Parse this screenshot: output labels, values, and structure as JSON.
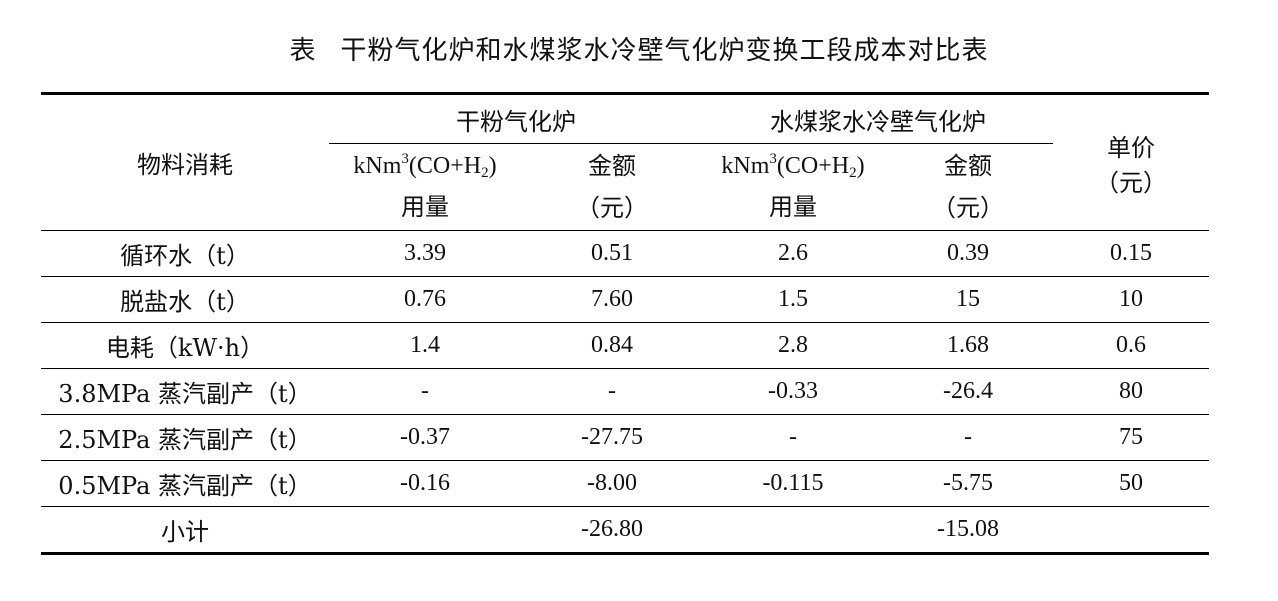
{
  "title": {
    "prefix": "表",
    "text": "干粉气化炉和水煤浆水冷壁气化炉变换工段成本对比表"
  },
  "headers": {
    "material": "物料消耗",
    "group1": "干粉气化炉",
    "group2": "水煤浆水冷壁气化炉",
    "unit_price_line1": "单价",
    "unit_price_line2": "（元）",
    "usage_prefix": "kNm",
    "usage_sup": "3",
    "usage_mid": "(CO+H",
    "usage_sub": "2",
    "usage_suffix": ")",
    "usage_line2": "用量",
    "amount_line1": "金额",
    "amount_line2": "（元）"
  },
  "rows": [
    {
      "name": "循环水（t）",
      "dry_usage": "3.39",
      "dry_amount": "0.51",
      "slurry_usage": "2.6",
      "slurry_amount": "0.39",
      "price": "0.15"
    },
    {
      "name": "脱盐水（t）",
      "dry_usage": "0.76",
      "dry_amount": "7.60",
      "slurry_usage": "1.5",
      "slurry_amount": "15",
      "price": "10"
    },
    {
      "name": "电耗（kW·h）",
      "dry_usage": "1.4",
      "dry_amount": "0.84",
      "slurry_usage": "2.8",
      "slurry_amount": "1.68",
      "price": "0.6"
    },
    {
      "name": "3.8MPa 蒸汽副产（t）",
      "dry_usage": "-",
      "dry_amount": "-",
      "slurry_usage": "-0.33",
      "slurry_amount": "-26.4",
      "price": "80"
    },
    {
      "name": "2.5MPa 蒸汽副产（t）",
      "dry_usage": "-0.37",
      "dry_amount": "-27.75",
      "slurry_usage": "-",
      "slurry_amount": "-",
      "price": "75"
    },
    {
      "name": "0.5MPa 蒸汽副产（t）",
      "dry_usage": "-0.16",
      "dry_amount": "-8.00",
      "slurry_usage": "-0.115",
      "slurry_amount": "-5.75",
      "price": "50"
    }
  ],
  "subtotal": {
    "label": "小计",
    "dry_amount": "-26.80",
    "slurry_amount": "-15.08"
  }
}
